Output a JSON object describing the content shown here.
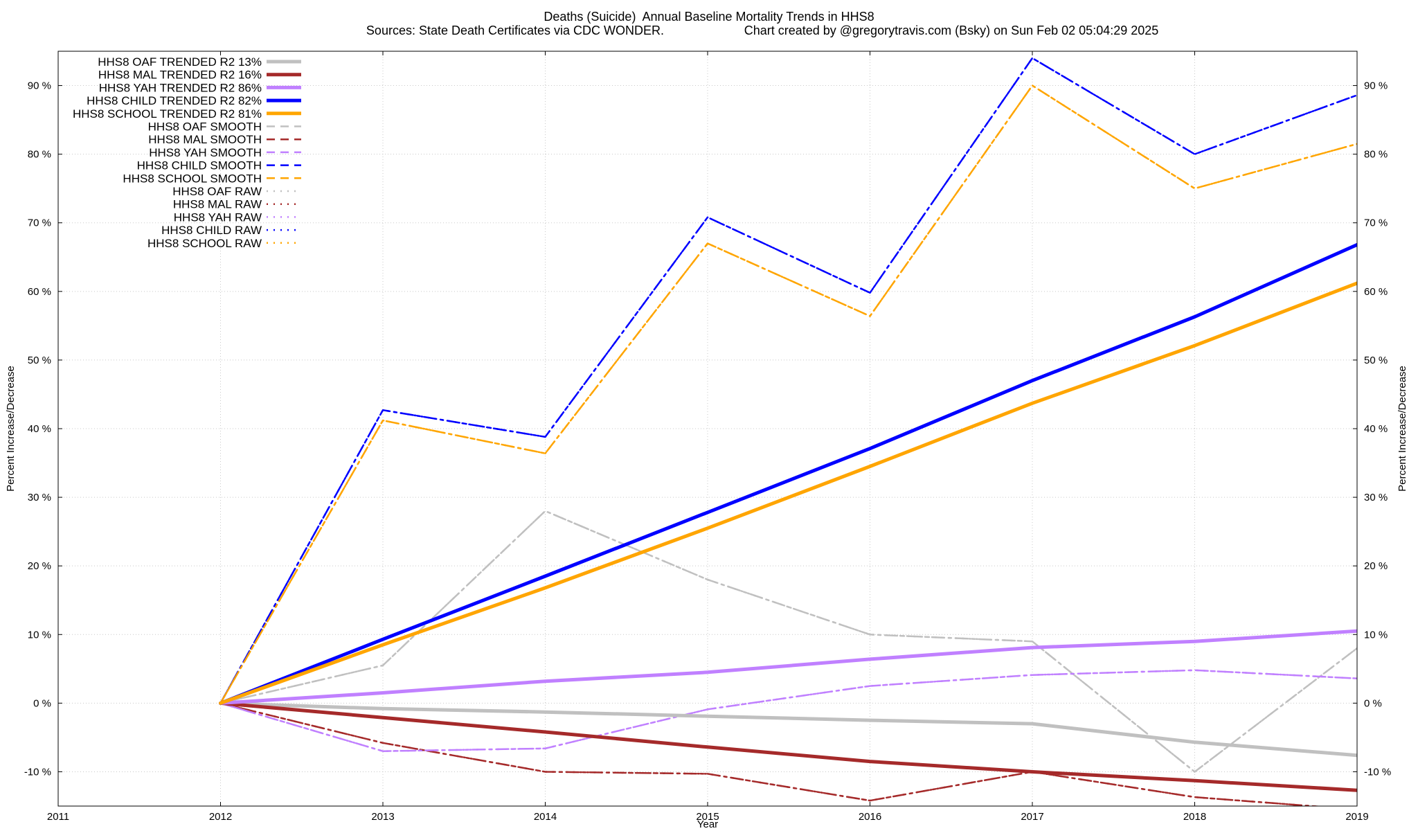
{
  "header": {
    "title": "Deaths (Suicide)  Annual Baseline Mortality Trends in HHS8",
    "sources": "Sources: State Death Certificates via CDC WONDER.",
    "credit": "Chart created by @gregorytravis.com (Bsky) on Sun Feb 02 05:04:29 2025"
  },
  "chart_data": {
    "type": "line",
    "xlabel": "Year",
    "ylabel": "Percent Increase/Decrease",
    "y2label": "Percent Increase/Decrease",
    "xlim": [
      2011,
      2019
    ],
    "ylim": [
      -15,
      95
    ],
    "x_ticks": [
      "2011",
      "2012",
      "2013",
      "2014",
      "2015",
      "2016",
      "2017",
      "2018",
      "2019"
    ],
    "y_ticks": [
      -10,
      0,
      10,
      20,
      30,
      40,
      50,
      60,
      70,
      80,
      90
    ],
    "y_tick_labels": [
      "-10 %",
      "0 %",
      "10 %",
      "20 %",
      "30 %",
      "40 %",
      "50 %",
      "60 %",
      "70 %",
      "80 %",
      "90 %"
    ],
    "grid": true,
    "legend_position": "top-left",
    "colors": {
      "oaf": "#c0c0c0",
      "mal": "#a52a2a",
      "yah": "#c080ff",
      "child": "#0000ff",
      "school": "#ffa500"
    },
    "series": [
      {
        "name": "HHS8 OAF TRENDED R2  13%",
        "key": "oaf",
        "style": "trend",
        "x": [
          2012,
          2013,
          2014,
          2015,
          2016,
          2017,
          2018,
          2019
        ],
        "values": [
          0,
          -0.8,
          -1.3,
          -1.9,
          -2.5,
          -3.0,
          -5.7,
          -7.6
        ]
      },
      {
        "name": "HHS8 MAL TRENDED R2  16%",
        "key": "mal",
        "style": "trend",
        "x": [
          2012,
          2013,
          2014,
          2015,
          2016,
          2017,
          2018,
          2019
        ],
        "values": [
          0,
          -2.1,
          -4.2,
          -6.4,
          -8.5,
          -10.0,
          -11.3,
          -12.7
        ]
      },
      {
        "name": "HHS8 YAH TRENDED R2  86%",
        "key": "yah",
        "style": "trend",
        "x": [
          2012,
          2013,
          2014,
          2015,
          2016,
          2017,
          2018,
          2019
        ],
        "values": [
          0,
          1.5,
          3.2,
          4.5,
          6.4,
          8.1,
          9.0,
          10.5
        ]
      },
      {
        "name": "HHS8 CHILD TRENDED R2  82%",
        "key": "child",
        "style": "trend",
        "x": [
          2012,
          2013,
          2014,
          2015,
          2016,
          2017,
          2018,
          2019
        ],
        "values": [
          0,
          9.3,
          18.5,
          27.8,
          37.1,
          47.0,
          56.3,
          66.8
        ]
      },
      {
        "name": "HHS8 SCHOOL TRENDED R2  81%",
        "key": "school",
        "style": "trend",
        "x": [
          2012,
          2013,
          2014,
          2015,
          2016,
          2017,
          2018,
          2019
        ],
        "values": [
          0,
          8.5,
          16.8,
          25.5,
          34.5,
          43.7,
          52.1,
          61.2
        ]
      },
      {
        "name": "HHS8 OAF SMOOTH",
        "key": "oaf",
        "style": "smooth",
        "x": [
          2012,
          2013,
          2014,
          2015,
          2016,
          2017,
          2018,
          2019
        ],
        "values": [
          0,
          5.5,
          28.0,
          18.0,
          10.0,
          9.0,
          -10.0,
          8.0
        ]
      },
      {
        "name": "HHS8 MAL SMOOTH",
        "key": "mal",
        "style": "smooth",
        "x": [
          2012,
          2013,
          2014,
          2015,
          2016,
          2017,
          2018,
          2019
        ],
        "values": [
          0,
          -5.8,
          -10.0,
          -10.3,
          -14.2,
          -10.0,
          -13.7,
          -15.5
        ]
      },
      {
        "name": "HHS8 YAH SMOOTH",
        "key": "yah",
        "style": "smooth",
        "x": [
          2012,
          2013,
          2014,
          2015,
          2016,
          2017,
          2018,
          2019
        ],
        "values": [
          0,
          -7.0,
          -6.6,
          -0.9,
          2.5,
          4.1,
          4.8,
          3.6
        ]
      },
      {
        "name": "HHS8 CHILD SMOOTH",
        "key": "child",
        "style": "smooth",
        "x": [
          2012,
          2013,
          2014,
          2015,
          2016,
          2017,
          2018,
          2019
        ],
        "values": [
          0,
          42.7,
          38.8,
          70.8,
          59.8,
          94.0,
          80.0,
          88.6
        ]
      },
      {
        "name": "HHS8 SCHOOL SMOOTH",
        "key": "school",
        "style": "smooth",
        "x": [
          2012,
          2013,
          2014,
          2015,
          2016,
          2017,
          2018,
          2019
        ],
        "values": [
          0,
          41.2,
          36.4,
          67.0,
          56.4,
          90.0,
          75.0,
          81.5
        ]
      },
      {
        "name": "HHS8 OAF RAW",
        "key": "oaf",
        "style": "raw",
        "x": [
          2012,
          2013,
          2014,
          2015,
          2016,
          2017,
          2018,
          2019
        ],
        "values": [
          0,
          5.5,
          28.0,
          18.0,
          10.0,
          9.0,
          -10.0,
          8.0
        ]
      },
      {
        "name": "HHS8 MAL RAW",
        "key": "mal",
        "style": "raw",
        "x": [
          2012,
          2013,
          2014,
          2015,
          2016,
          2017,
          2018,
          2019
        ],
        "values": [
          0,
          -5.8,
          -10.0,
          -10.3,
          -14.2,
          -10.0,
          -13.7,
          -15.5
        ]
      },
      {
        "name": "HHS8 YAH RAW",
        "key": "yah",
        "style": "raw",
        "x": [
          2012,
          2013,
          2014,
          2015,
          2016,
          2017,
          2018,
          2019
        ],
        "values": [
          0,
          -7.0,
          -6.6,
          -0.9,
          2.5,
          4.1,
          4.8,
          3.6
        ]
      },
      {
        "name": "HHS8 CHILD RAW",
        "key": "child",
        "style": "raw",
        "x": [
          2012,
          2013,
          2014,
          2015,
          2016,
          2017,
          2018,
          2019
        ],
        "values": [
          0,
          42.7,
          38.8,
          70.8,
          59.8,
          94.0,
          80.0,
          88.6
        ]
      },
      {
        "name": "HHS8 SCHOOL RAW",
        "key": "school",
        "style": "raw",
        "x": [
          2012,
          2013,
          2014,
          2015,
          2016,
          2017,
          2018,
          2019
        ],
        "values": [
          0,
          41.2,
          36.4,
          67.0,
          56.4,
          90.0,
          75.0,
          81.5
        ]
      }
    ]
  }
}
